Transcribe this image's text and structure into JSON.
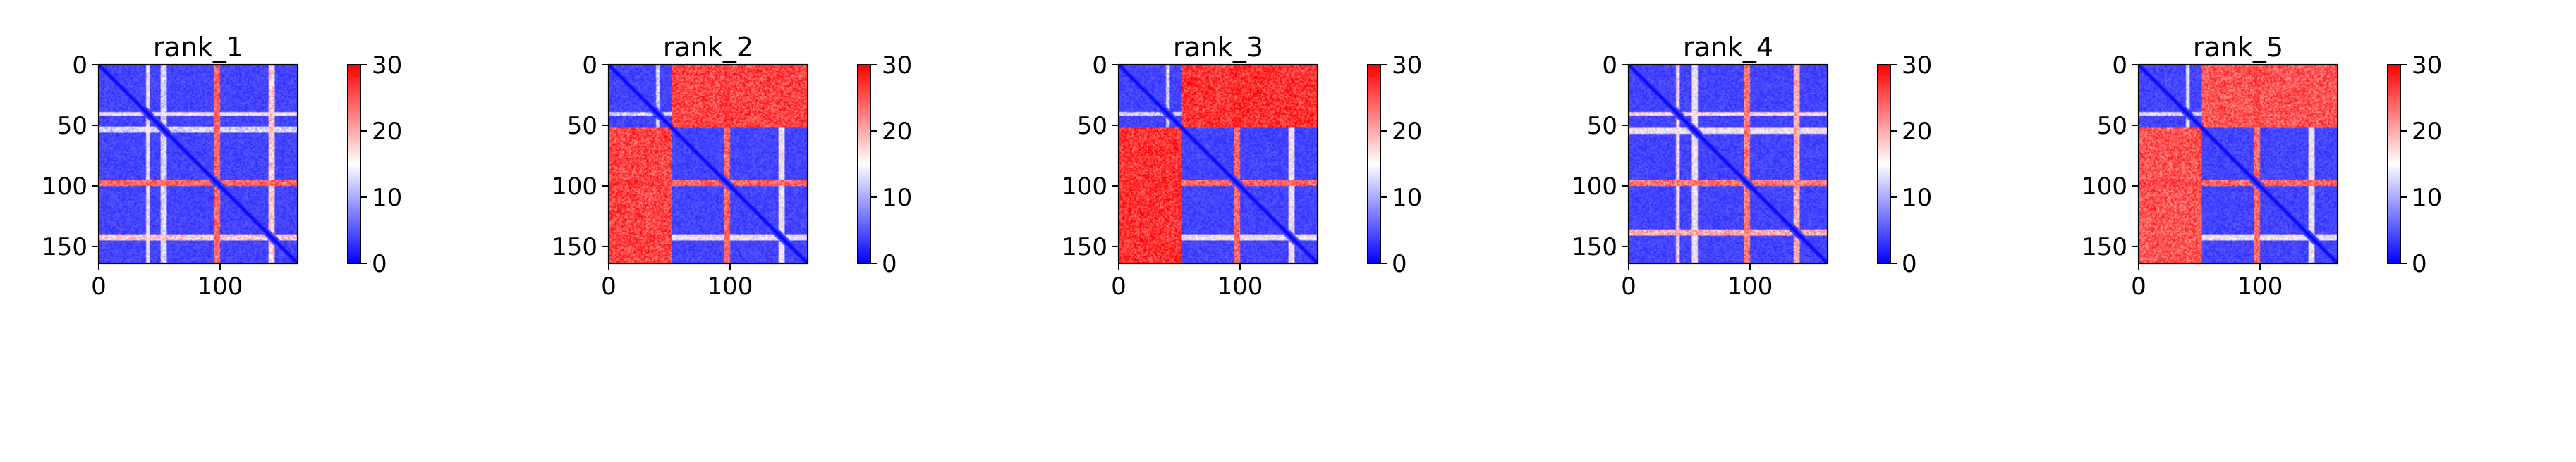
{
  "chart_data": [
    {
      "type": "heatmap",
      "title": "rank_1",
      "size": 164,
      "xlim": [
        0,
        164
      ],
      "ylim": [
        164,
        0
      ],
      "xticks": [
        0,
        100
      ],
      "yticks": [
        0,
        50,
        100,
        150
      ],
      "colorbar": {
        "min": 0,
        "max": 30,
        "ticks": [
          0,
          10,
          20,
          30
        ],
        "colors": [
          "#0000ff",
          "#ffffff",
          "#ff0000"
        ]
      },
      "base_value": 4,
      "diagonal_value": 0,
      "blocks": [],
      "bands": [
        {
          "center": 40,
          "width": 3,
          "value": 15
        },
        {
          "center": 53,
          "width": 4,
          "value": 13
        },
        {
          "center": 97,
          "width": 5,
          "value": 24
        },
        {
          "center": 142,
          "width": 5,
          "value": 18
        }
      ]
    },
    {
      "type": "heatmap",
      "title": "rank_2",
      "size": 164,
      "xlim": [
        0,
        164
      ],
      "ylim": [
        164,
        0
      ],
      "xticks": [
        0,
        100
      ],
      "yticks": [
        0,
        50,
        100,
        150
      ],
      "colorbar": {
        "min": 0,
        "max": 30,
        "ticks": [
          0,
          10,
          20,
          30
        ],
        "colors": [
          "#0000ff",
          "#ffffff",
          "#ff0000"
        ]
      },
      "base_value": 4,
      "diagonal_value": 0,
      "blocks": [
        {
          "rows": [
            0,
            52
          ],
          "cols": [
            55,
            164
          ],
          "value": 26
        },
        {
          "rows": [
            52,
            164
          ],
          "cols": [
            0,
            52
          ],
          "value": 26
        }
      ],
      "bands": [
        {
          "center": 40,
          "width": 3,
          "value": 13
        },
        {
          "center": 97,
          "width": 5,
          "value": 24
        },
        {
          "center": 142,
          "width": 4,
          "value": 15
        }
      ]
    },
    {
      "type": "heatmap",
      "title": "rank_3",
      "size": 164,
      "xlim": [
        0,
        164
      ],
      "ylim": [
        164,
        0
      ],
      "xticks": [
        0,
        100
      ],
      "yticks": [
        0,
        50,
        100,
        150
      ],
      "colorbar": {
        "min": 0,
        "max": 30,
        "ticks": [
          0,
          10,
          20,
          30
        ],
        "colors": [
          "#0000ff",
          "#ffffff",
          "#ff0000"
        ]
      },
      "base_value": 4,
      "diagonal_value": 0,
      "blocks": [
        {
          "rows": [
            0,
            52
          ],
          "cols": [
            55,
            164
          ],
          "value": 27
        },
        {
          "rows": [
            52,
            164
          ],
          "cols": [
            0,
            52
          ],
          "value": 27
        }
      ],
      "bands": [
        {
          "center": 40,
          "width": 3,
          "value": 13
        },
        {
          "center": 97,
          "width": 5,
          "value": 24
        },
        {
          "center": 142,
          "width": 4,
          "value": 15
        }
      ]
    },
    {
      "type": "heatmap",
      "title": "rank_4",
      "size": 164,
      "xlim": [
        0,
        164
      ],
      "ylim": [
        164,
        0
      ],
      "xticks": [
        0,
        100
      ],
      "yticks": [
        0,
        50,
        100,
        150
      ],
      "colorbar": {
        "min": 0,
        "max": 30,
        "ticks": [
          0,
          10,
          20,
          30
        ],
        "colors": [
          "#0000ff",
          "#ffffff",
          "#ff0000"
        ]
      },
      "base_value": 4,
      "diagonal_value": 0,
      "blocks": [],
      "bands": [
        {
          "center": 40,
          "width": 3,
          "value": 17
        },
        {
          "center": 54,
          "width": 4,
          "value": 15
        },
        {
          "center": 97,
          "width": 5,
          "value": 23
        },
        {
          "center": 138,
          "width": 5,
          "value": 20
        }
      ]
    },
    {
      "type": "heatmap",
      "title": "rank_5",
      "size": 164,
      "xlim": [
        0,
        164
      ],
      "ylim": [
        164,
        0
      ],
      "xticks": [
        0,
        100
      ],
      "yticks": [
        0,
        50,
        100,
        150
      ],
      "colorbar": {
        "min": 0,
        "max": 30,
        "ticks": [
          0,
          10,
          20,
          30
        ],
        "colors": [
          "#0000ff",
          "#ffffff",
          "#ff0000"
        ]
      },
      "base_value": 4,
      "diagonal_value": 0,
      "blocks": [
        {
          "rows": [
            0,
            52
          ],
          "cols": [
            55,
            164
          ],
          "value": 25
        },
        {
          "rows": [
            52,
            164
          ],
          "cols": [
            0,
            52
          ],
          "value": 25
        }
      ],
      "bands": [
        {
          "center": 40,
          "width": 3,
          "value": 14
        },
        {
          "center": 97,
          "width": 5,
          "value": 24
        },
        {
          "center": 142,
          "width": 4,
          "value": 15
        }
      ]
    }
  ]
}
